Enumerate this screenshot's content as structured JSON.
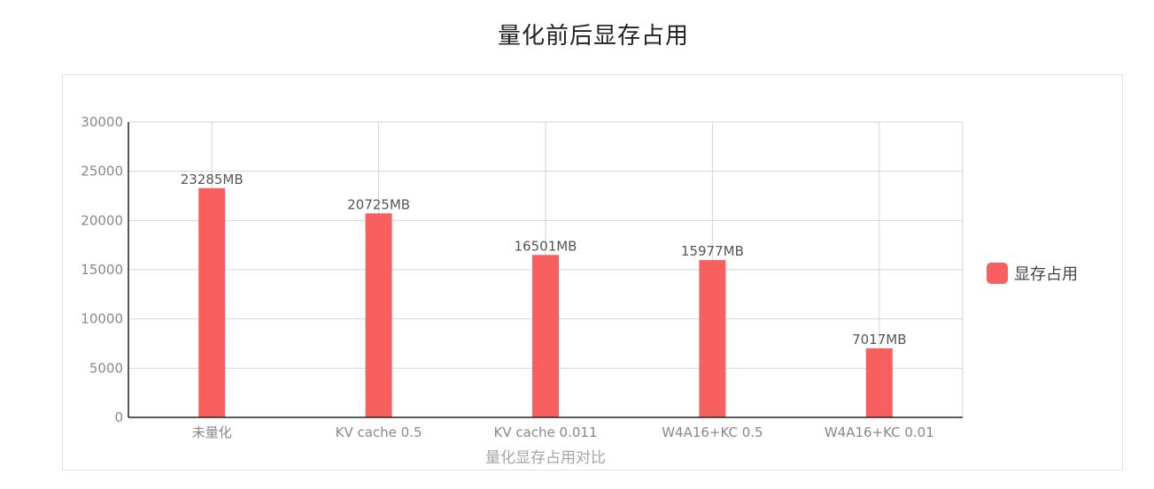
{
  "title": "量化前后显存占用",
  "chart_data": {
    "type": "bar",
    "categories": [
      "未量化",
      "KV cache 0.5",
      "KV cache 0.011",
      "W4A16+KC 0.5",
      "W4A16+KC 0.01"
    ],
    "series": [
      {
        "name": "显存占用",
        "values": [
          23285,
          20725,
          16501,
          15977,
          7017
        ],
        "data_labels": [
          "23285MB",
          "20725MB",
          "16501MB",
          "15977MB",
          "7017MB"
        ],
        "color": "#f86060"
      }
    ],
    "xlabel": "量化显存占用对比",
    "ylabel": "",
    "ylim": [
      0,
      30000
    ],
    "yticks": [
      0,
      5000,
      10000,
      15000,
      20000,
      25000,
      30000
    ],
    "grid": true,
    "legend_position": "right"
  }
}
